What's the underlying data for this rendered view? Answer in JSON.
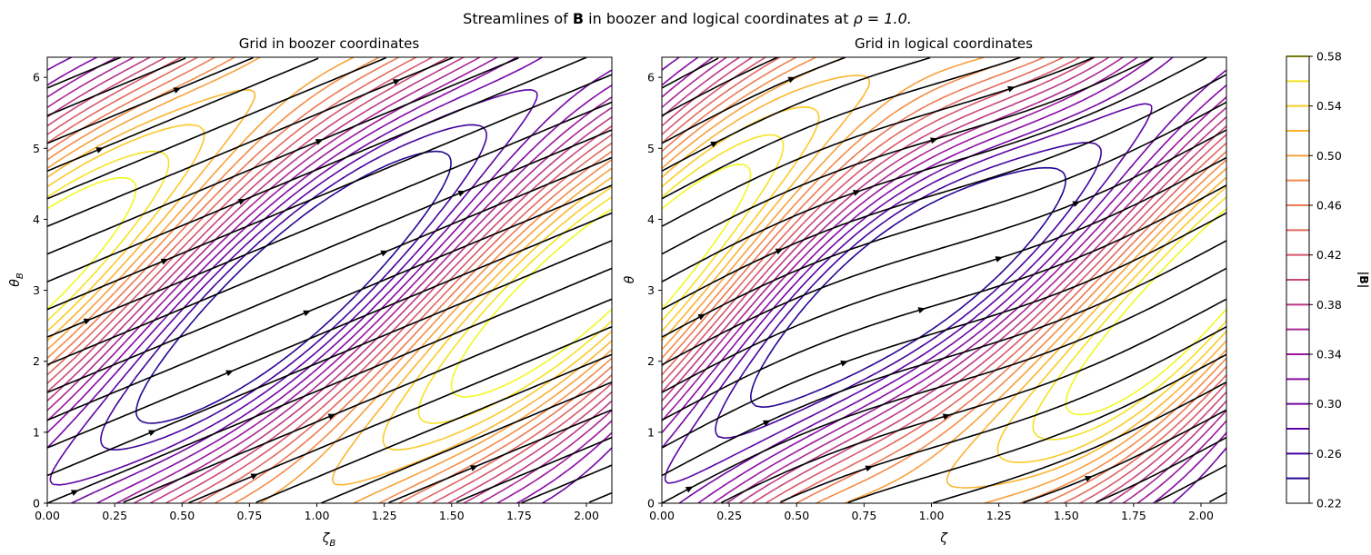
{
  "figure": {
    "suptitle_prefix": "Streamlines of ",
    "suptitle_bold": "B",
    "suptitle_middle": " in boozer and logical coordinates at ",
    "suptitle_rho": "ρ = 1.0."
  },
  "chart_data": [
    {
      "type": "contour+streamlines",
      "title": "Grid in boozer coordinates",
      "xlabel": "ζ",
      "xlabel_sub": "B",
      "ylabel": "θ",
      "ylabel_sub": "B",
      "xlim": [
        0,
        2.0944
      ],
      "ylim": [
        0,
        6.2832
      ],
      "xticks": [
        "0.00",
        "0.25",
        "0.50",
        "0.75",
        "1.00",
        "1.25",
        "1.50",
        "1.75",
        "2.00"
      ],
      "xtick_values": [
        0,
        0.25,
        0.5,
        0.75,
        1.0,
        1.25,
        1.5,
        1.75,
        2.0
      ],
      "yticks": [
        "0",
        "1",
        "2",
        "3",
        "4",
        "5",
        "6"
      ],
      "ytick_values": [
        0,
        1,
        2,
        3,
        4,
        5,
        6
      ],
      "field_model": {
        "mean": 0.4,
        "amp_theta": 0.17,
        "amp_helical": 0.055,
        "theta_shift": 0.3,
        "theta_shear": 0.0
      },
      "streamlines": {
        "slope": 1.58,
        "theta_offsets": [
          0.0,
          0.39,
          0.78,
          1.17,
          1.56,
          1.95,
          2.34,
          2.73,
          3.12,
          3.51,
          3.9,
          4.29,
          4.68,
          5.07,
          5.46,
          5.85
        ]
      },
      "contour_levels": [
        0.24,
        0.26,
        0.28,
        0.3,
        0.32,
        0.34,
        0.36,
        0.38,
        0.4,
        0.42,
        0.44,
        0.46,
        0.48,
        0.5,
        0.52,
        0.54,
        0.56,
        0.58
      ]
    },
    {
      "type": "contour+streamlines",
      "title": "Grid in logical coordinates",
      "xlabel": "ζ",
      "xlabel_sub": "",
      "ylabel": "θ",
      "ylabel_sub": "",
      "xlim": [
        0,
        2.0944
      ],
      "ylim": [
        0,
        6.2832
      ],
      "xticks": [
        "0.00",
        "0.25",
        "0.50",
        "0.75",
        "1.00",
        "1.25",
        "1.50",
        "1.75",
        "2.00"
      ],
      "xtick_values": [
        0,
        0.25,
        0.5,
        0.75,
        1.0,
        1.25,
        1.5,
        1.75,
        2.0
      ],
      "yticks": [
        "0",
        "1",
        "2",
        "3",
        "4",
        "5",
        "6"
      ],
      "ytick_values": [
        0,
        1,
        2,
        3,
        4,
        5,
        6
      ],
      "field_model": {
        "mean": 0.4,
        "amp_theta": 0.17,
        "amp_helical": 0.055,
        "theta_shift": 0.3,
        "theta_shear": 0.25
      },
      "streamlines": {
        "slope": 1.58,
        "theta_offsets": [
          0.0,
          0.39,
          0.78,
          1.17,
          1.56,
          1.95,
          2.34,
          2.73,
          3.12,
          3.51,
          3.9,
          4.29,
          4.68,
          5.07,
          5.46,
          5.85
        ]
      },
      "contour_levels": [
        0.24,
        0.26,
        0.28,
        0.3,
        0.32,
        0.34,
        0.36,
        0.38,
        0.4,
        0.42,
        0.44,
        0.46,
        0.48,
        0.5,
        0.52,
        0.54,
        0.56,
        0.58
      ]
    }
  ],
  "colorbar": {
    "label": "|B|",
    "vmin": 0.22,
    "vmax": 0.58,
    "ticks": [
      "0.22",
      "0.26",
      "0.30",
      "0.34",
      "0.38",
      "0.42",
      "0.46",
      "0.50",
      "0.54",
      "0.58"
    ],
    "tick_values": [
      0.22,
      0.26,
      0.3,
      0.34,
      0.38,
      0.42,
      0.46,
      0.5,
      0.54,
      0.58
    ],
    "colormap": "plasma",
    "colormap_stops": [
      "#0d0887",
      "#5302a3",
      "#8b0aa5",
      "#b83289",
      "#db5c68",
      "#f48849",
      "#febd2a",
      "#f0f921"
    ]
  },
  "streamline_color": "#000000"
}
